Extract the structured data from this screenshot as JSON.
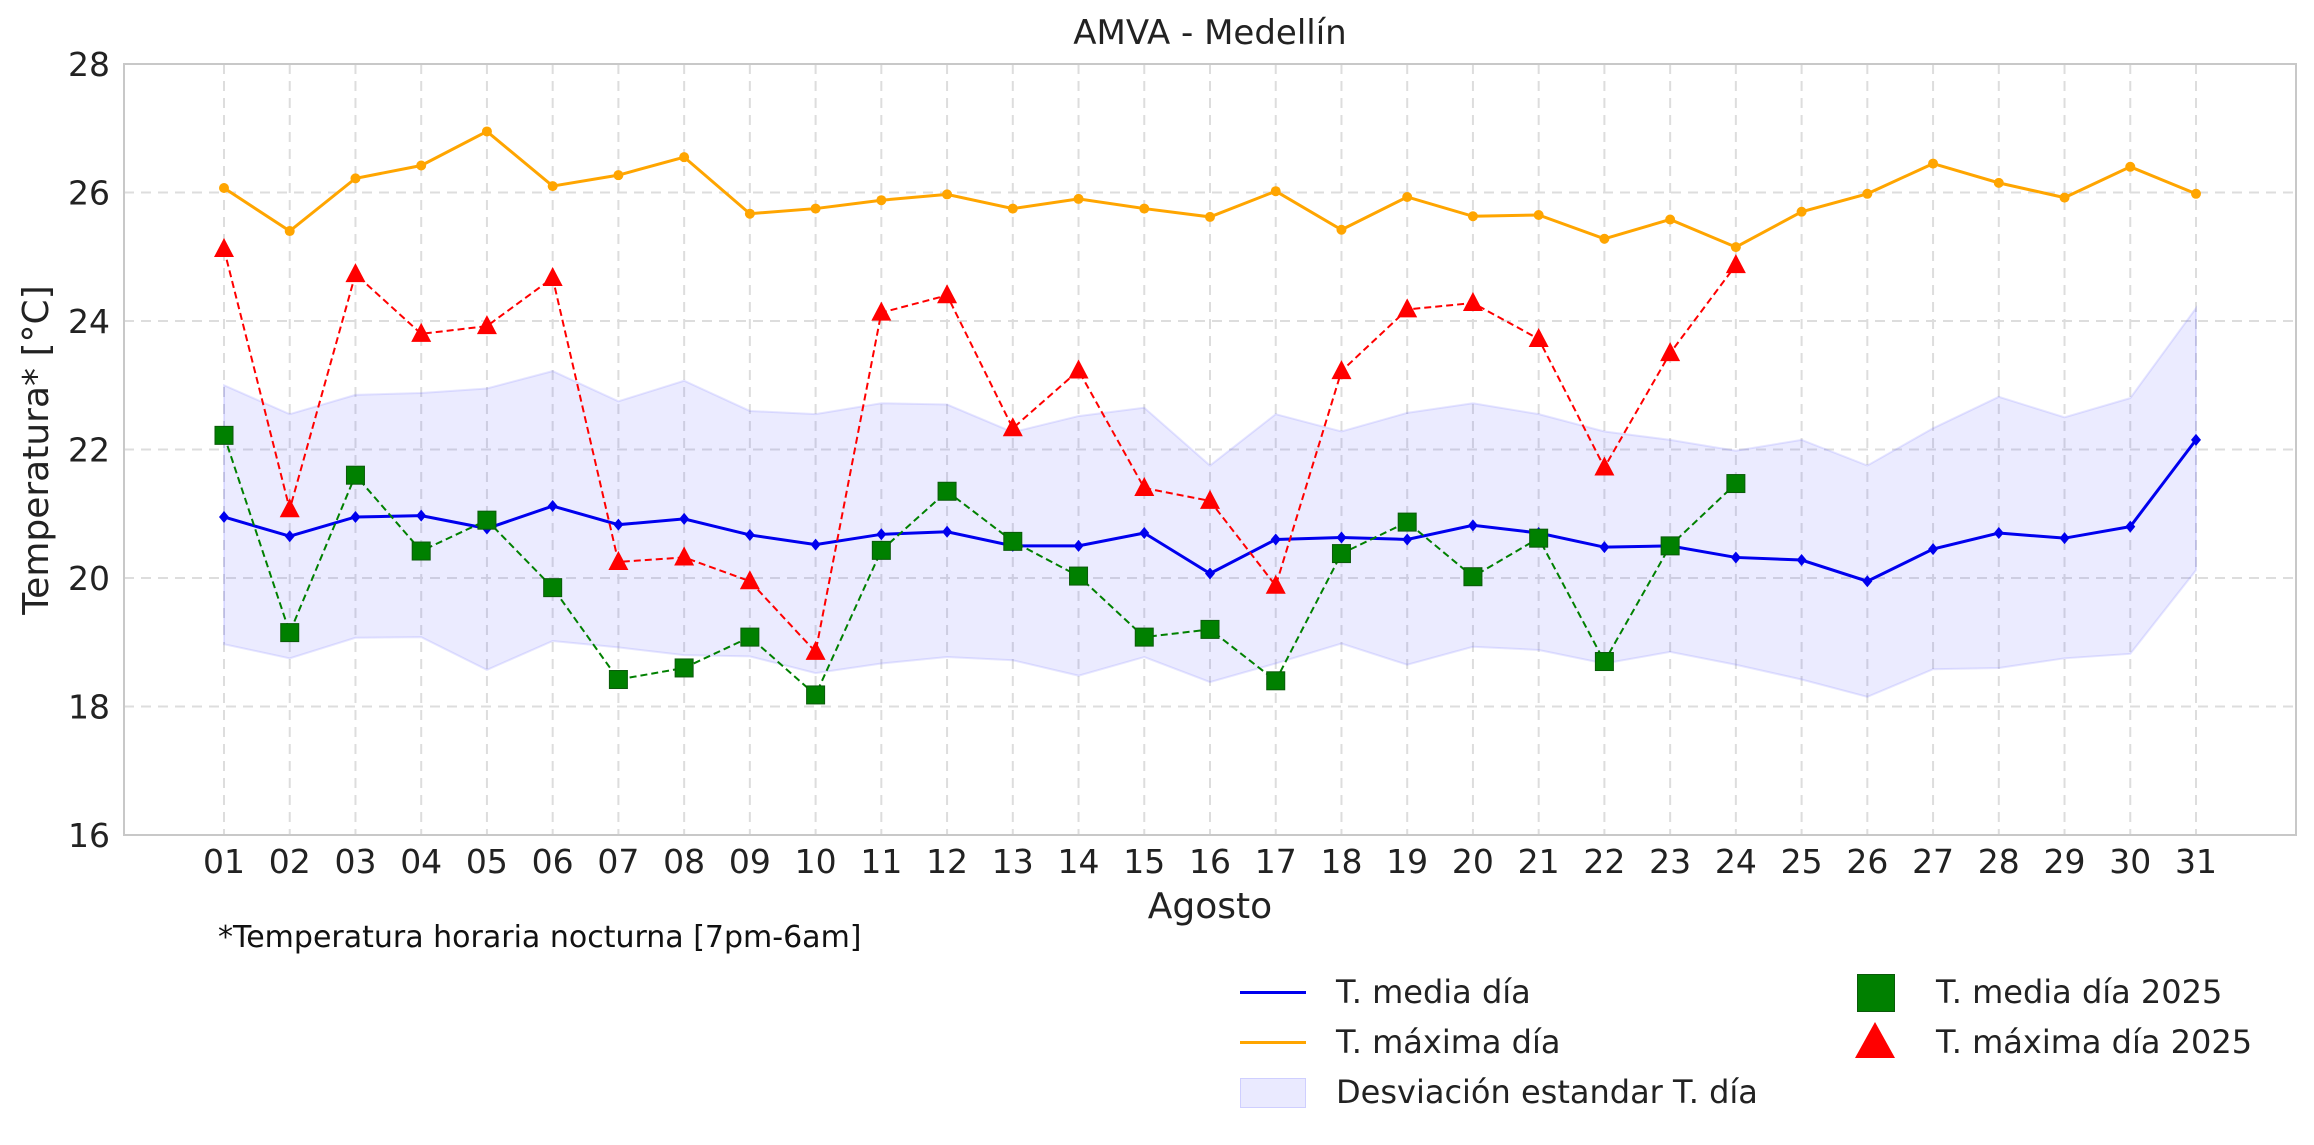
{
  "chart_data": {
    "type": "line",
    "title": "AMVA - Medellín",
    "xlabel": "Agosto",
    "ylabel": "Temperatura* [°C]",
    "ylim": [
      16,
      28
    ],
    "yticks": [
      16,
      18,
      20,
      22,
      24,
      26,
      28
    ],
    "grid": true,
    "categories": [
      "01",
      "02",
      "03",
      "04",
      "05",
      "06",
      "07",
      "08",
      "09",
      "10",
      "11",
      "12",
      "13",
      "14",
      "15",
      "16",
      "17",
      "18",
      "19",
      "20",
      "21",
      "22",
      "23",
      "24",
      "25",
      "26",
      "27",
      "28",
      "29",
      "30",
      "31"
    ],
    "series": [
      {
        "name": "T. media día",
        "color": "#0000ee",
        "style": "solid",
        "marker": "diamond",
        "values": [
          20.95,
          20.65,
          20.95,
          20.97,
          20.77,
          21.12,
          20.83,
          20.92,
          20.67,
          20.52,
          20.68,
          20.72,
          20.5,
          20.5,
          20.7,
          20.07,
          20.6,
          20.63,
          20.6,
          20.82,
          20.7,
          20.48,
          20.5,
          20.32,
          20.28,
          19.95,
          20.45,
          20.7,
          20.62,
          20.8,
          22.15
        ]
      },
      {
        "name": "T. máxima día",
        "color": "#ffa500",
        "style": "solid",
        "marker": "circle",
        "values": [
          26.07,
          25.4,
          26.22,
          26.42,
          26.95,
          26.1,
          26.27,
          26.55,
          25.67,
          25.75,
          25.88,
          25.97,
          25.75,
          25.9,
          25.75,
          25.62,
          26.02,
          25.42,
          25.93,
          25.63,
          25.65,
          25.28,
          25.58,
          25.15,
          25.7,
          25.98,
          26.45,
          26.15,
          25.92,
          26.4,
          25.98
        ]
      },
      {
        "name": "T. media día 2025",
        "color": "#008000",
        "style": "dashed",
        "marker": "square",
        "values": [
          22.22,
          19.15,
          21.6,
          20.42,
          20.9,
          19.85,
          18.42,
          18.6,
          19.08,
          18.18,
          20.43,
          21.35,
          20.57,
          20.03,
          19.08,
          19.2,
          18.4,
          20.38,
          20.87,
          20.02,
          20.62,
          18.7,
          20.5,
          21.47,
          null,
          null,
          null,
          null,
          null,
          null,
          null
        ]
      },
      {
        "name": "T. máxima día 2025",
        "color": "#ff0000",
        "style": "dashed",
        "marker": "triangle",
        "values": [
          25.12,
          21.07,
          24.73,
          23.8,
          23.92,
          24.67,
          20.25,
          20.32,
          19.95,
          18.85,
          24.13,
          24.4,
          22.33,
          23.23,
          21.4,
          21.2,
          19.88,
          23.22,
          24.18,
          24.28,
          23.72,
          21.72,
          23.5,
          24.87,
          null,
          null,
          null,
          null,
          null,
          null,
          null
        ]
      }
    ],
    "band": {
      "name": "Desviación estandar T. día",
      "color": "#5a5aff",
      "upper": [
        23.0,
        22.55,
        22.85,
        22.88,
        22.95,
        23.22,
        22.75,
        23.07,
        22.6,
        22.55,
        22.72,
        22.7,
        22.27,
        22.52,
        22.65,
        21.75,
        22.55,
        22.28,
        22.57,
        22.72,
        22.55,
        22.28,
        22.15,
        21.98,
        22.15,
        21.75,
        22.33,
        22.82,
        22.5,
        22.8,
        24.2
      ],
      "lower": [
        18.97,
        18.75,
        19.07,
        19.08,
        18.57,
        19.02,
        18.92,
        18.8,
        18.78,
        18.52,
        18.67,
        18.77,
        18.72,
        18.48,
        18.77,
        18.38,
        18.67,
        18.98,
        18.65,
        18.93,
        18.88,
        18.67,
        18.85,
        18.65,
        18.42,
        18.15,
        18.58,
        18.6,
        18.75,
        18.82,
        20.12
      ]
    },
    "legend_position": "bottom-right"
  },
  "footnote": "*Temperatura horaria nocturna [7pm-6am]",
  "legend": {
    "media": "T. media día",
    "maxima": "T. máxima día",
    "desviacion": "Desviación estandar T. día",
    "media2025": "T. media día 2025",
    "maxima2025": "T. máxima día 2025"
  }
}
